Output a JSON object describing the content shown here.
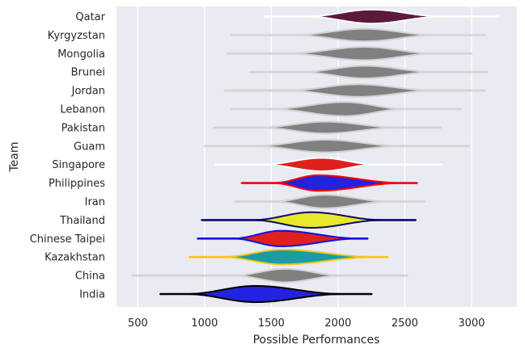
{
  "chart_data": {
    "type": "violin",
    "orientation": "horizontal",
    "title": "",
    "xlabel": "Possible Performances",
    "ylabel": "Team",
    "xlim": [
      340,
      3340
    ],
    "xticks": [
      500,
      1000,
      1500,
      2000,
      2500,
      3000
    ],
    "grid": true,
    "legend": "none",
    "colors": {
      "background": "#eaeaf2",
      "grid": "#ffffff",
      "neutral_fill": "#808080",
      "neutral_line": "#d3d3d3"
    },
    "teams": [
      {
        "name": "Qatar",
        "fill": "#5c1a3a",
        "line": "#ffffff",
        "whisker": [
          1450,
          3200
        ],
        "body": [
          1750,
          2800
        ],
        "peak": 2250,
        "width": 0.38
      },
      {
        "name": "Kyrgyzstan",
        "fill": "#808080",
        "line": "#d3d3d3",
        "whisker": [
          1200,
          3100
        ],
        "body": [
          1650,
          2750
        ],
        "peak": 2200,
        "width": 0.34
      },
      {
        "name": "Mongolia",
        "fill": "#808080",
        "line": "#d3d3d3",
        "whisker": [
          1170,
          3000
        ],
        "body": [
          1600,
          2750
        ],
        "peak": 2200,
        "width": 0.36
      },
      {
        "name": "Brunei",
        "fill": "#808080",
        "line": "#d3d3d3",
        "whisker": [
          1340,
          3120
        ],
        "body": [
          1700,
          2750
        ],
        "peak": 2200,
        "width": 0.34
      },
      {
        "name": "Jordan",
        "fill": "#808080",
        "line": "#d3d3d3",
        "whisker": [
          1150,
          3100
        ],
        "body": [
          1600,
          2750
        ],
        "peak": 2150,
        "width": 0.34
      },
      {
        "name": "Lebanon",
        "fill": "#808080",
        "line": "#d3d3d3",
        "whisker": [
          1200,
          2920
        ],
        "body": [
          1480,
          2520
        ],
        "peak": 2050,
        "width": 0.38
      },
      {
        "name": "Pakistan",
        "fill": "#808080",
        "line": "#d3d3d3",
        "whisker": [
          1070,
          2770
        ],
        "body": [
          1400,
          2480
        ],
        "peak": 1900,
        "width": 0.32
      },
      {
        "name": "Guam",
        "fill": "#808080",
        "line": "#d3d3d3",
        "whisker": [
          1000,
          2980
        ],
        "body": [
          1350,
          2500
        ],
        "peak": 1900,
        "width": 0.34
      },
      {
        "name": "Singapore",
        "fill": "#e0201c",
        "line": "#ffffff",
        "whisker": [
          1080,
          2780
        ],
        "body": [
          1420,
          2300
        ],
        "peak": 1880,
        "width": 0.36
      },
      {
        "name": "Philippines",
        "fill": "#2323dd",
        "line": "#ff0000",
        "whisker": [
          1280,
          2590
        ],
        "body": [
          1500,
          2500
        ],
        "peak": 1850,
        "width": 0.42
      },
      {
        "name": "Iran",
        "fill": "#808080",
        "line": "#d3d3d3",
        "whisker": [
          1230,
          2650
        ],
        "body": [
          1500,
          2400
        ],
        "peak": 1900,
        "width": 0.36
      },
      {
        "name": "Thailand",
        "fill": "#e8e82a",
        "line": "#0b0b66",
        "whisker": [
          980,
          2580
        ],
        "body": [
          1350,
          2350
        ],
        "peak": 1800,
        "width": 0.42
      },
      {
        "name": "Chinese Taipei",
        "fill": "#e0201c",
        "line": "#1111dd",
        "whisker": [
          950,
          2220
        ],
        "body": [
          1200,
          2180
        ],
        "peak": 1570,
        "width": 0.42
      },
      {
        "name": "Kazakhstan",
        "fill": "#199ca5",
        "line": "#f5c518",
        "whisker": [
          890,
          2370
        ],
        "body": [
          1120,
          2300
        ],
        "peak": 1580,
        "width": 0.4
      },
      {
        "name": "China",
        "fill": "#808080",
        "line": "#d3d3d3",
        "whisker": [
          460,
          2520
        ],
        "body": [
          1200,
          2050
        ],
        "peak": 1600,
        "width": 0.36
      },
      {
        "name": "India",
        "fill": "#2323dd",
        "line": "#000000",
        "whisker": [
          670,
          2250
        ],
        "body": [
          850,
          2050
        ],
        "peak": 1380,
        "width": 0.44
      }
    ]
  }
}
